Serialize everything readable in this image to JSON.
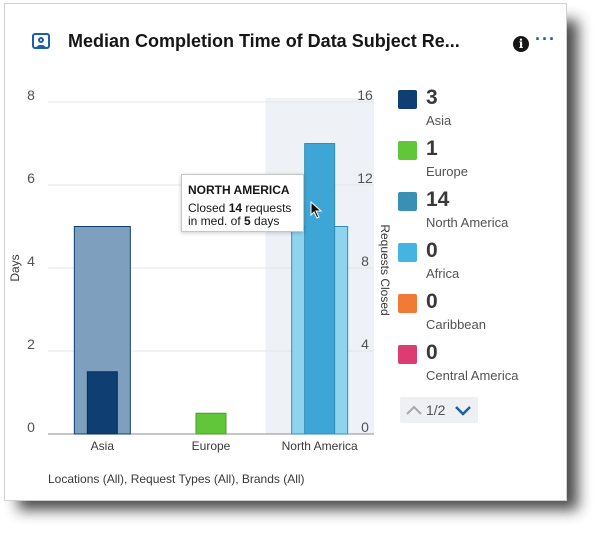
{
  "header": {
    "title": "Median Completion Time of Data Subject Re...",
    "info_icon": "info-icon",
    "more_icon": "overflow-menu-icon",
    "widget_icon": "presentation-user-icon"
  },
  "chart_data": {
    "type": "bar",
    "categories": [
      "Asia",
      "Europe",
      "North America"
    ],
    "series": [
      {
        "name": "Days",
        "axis": "left",
        "values": [
          5,
          0,
          5
        ]
      },
      {
        "name": "Requests Closed",
        "axis": "right",
        "values": [
          3,
          1,
          14
        ]
      }
    ],
    "ylabel": "Days",
    "ylim": [
      0,
      8
    ],
    "yticks": [
      "0",
      "2",
      "4",
      "6",
      "8"
    ],
    "y2label": "Requests Closed",
    "y2lim": [
      0,
      16
    ],
    "y2ticks": [
      "0",
      "4",
      "8",
      "12",
      "16"
    ],
    "highlighted_category": "North America",
    "grid": true
  },
  "colors": {
    "asia": "#0f3f72",
    "asia_days": "#7e9fbd",
    "europe": "#62c63a",
    "north_america": "#3ea6d6",
    "north_america_days": "#8fd3ef",
    "africa": "#45b4e3",
    "caribbean": "#f07a36",
    "central_america": "#dd3c72",
    "highlight_band": "#eef2f7"
  },
  "legend": [
    {
      "value": "3",
      "label": "Asia",
      "color": "#0f3f72"
    },
    {
      "value": "1",
      "label": "Europe",
      "color": "#62c63a"
    },
    {
      "value": "14",
      "label": "North America",
      "color": "#3a8fb5"
    },
    {
      "value": "0",
      "label": "Africa",
      "color": "#45b4e3"
    },
    {
      "value": "0",
      "label": "Caribbean",
      "color": "#f07a36"
    },
    {
      "value": "0",
      "label": "Central America",
      "color": "#dd3c72"
    }
  ],
  "pager": {
    "text": "1/2"
  },
  "tooltip": {
    "title": "NORTH AMERICA",
    "line1_prefix": "Closed ",
    "line1_value": "14",
    "line1_suffix": " requests",
    "line2_prefix": "in med. of ",
    "line2_value": "5",
    "line2_suffix": " days"
  },
  "footer": {
    "filters": "Locations (All), Request Types (All), Brands (All)"
  }
}
